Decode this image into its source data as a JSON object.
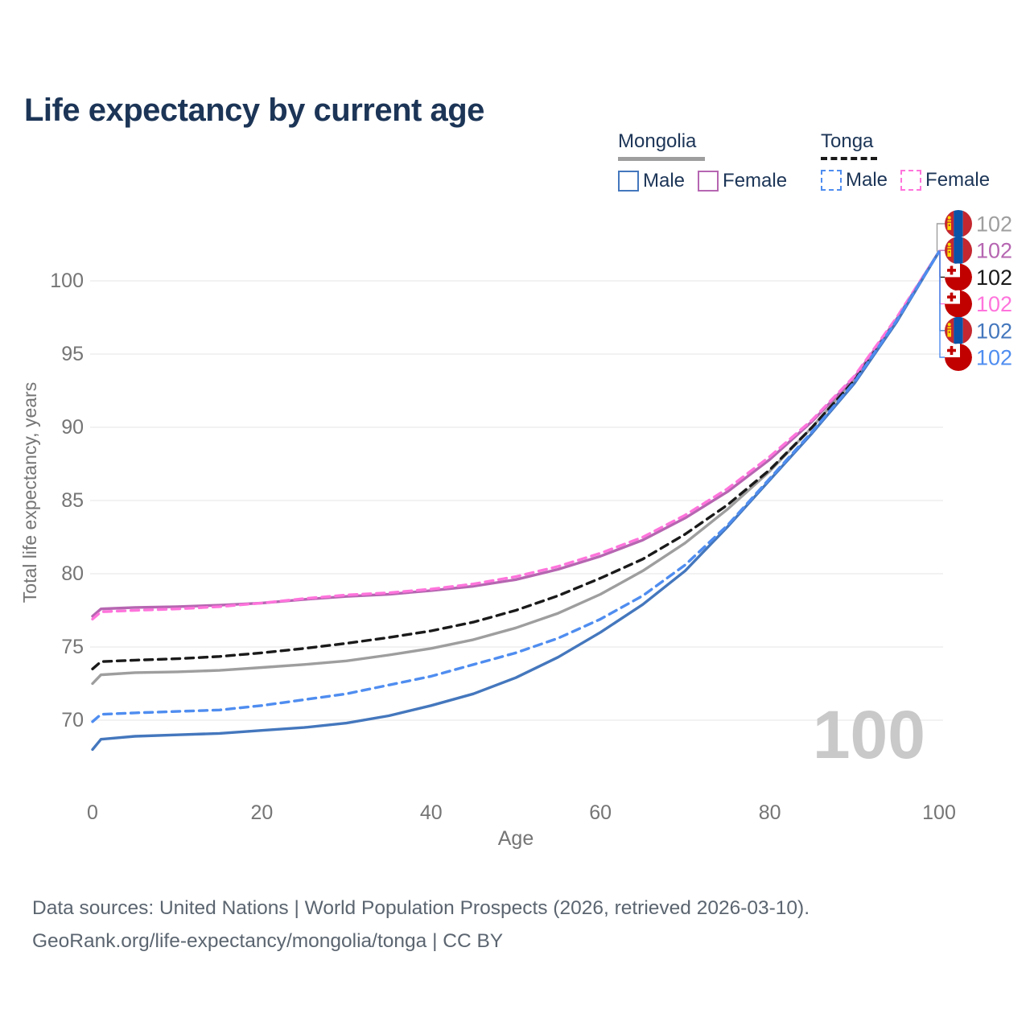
{
  "title": "Life expectancy by current age",
  "legend": {
    "groups": [
      {
        "country": "Mongolia",
        "underline_color": "#9e9e9e",
        "underline_style": "solid",
        "items": [
          {
            "label": "Male",
            "color": "#4477bd",
            "dash": false
          },
          {
            "label": "Female",
            "color": "#b666b1",
            "dash": false
          }
        ]
      },
      {
        "country": "Tonga",
        "underline_color": "#1a1a1a",
        "underline_style": "dashed",
        "items": [
          {
            "label": "Male",
            "color": "#4f8df0",
            "dash": true
          },
          {
            "label": "Female",
            "color": "#ff74dc",
            "dash": true
          }
        ]
      }
    ]
  },
  "chart_data": {
    "type": "line",
    "title": "Life expectancy by current age",
    "xlabel": "Age",
    "ylabel": "Total life expectancy, years",
    "xlim": [
      0,
      100
    ],
    "ylim": [
      67,
      103
    ],
    "x_ticks": [
      0,
      20,
      40,
      60,
      80,
      100
    ],
    "y_ticks": [
      70,
      75,
      80,
      85,
      90,
      95,
      100
    ],
    "grid": "horizontal",
    "legend_position": "top-right",
    "watermark": "100",
    "x": [
      0,
      1,
      5,
      10,
      15,
      20,
      25,
      30,
      35,
      40,
      45,
      50,
      55,
      60,
      65,
      70,
      75,
      80,
      85,
      90,
      95,
      100
    ],
    "series": [
      {
        "name": "Mongolia Total",
        "color": "#9e9e9e",
        "dash": false,
        "flag": "mongolia",
        "end_label": "102",
        "values": [
          72.5,
          73.1,
          73.25,
          73.3,
          73.4,
          73.6,
          73.8,
          74.05,
          74.45,
          74.9,
          75.5,
          76.3,
          77.3,
          78.6,
          80.2,
          82.1,
          84.4,
          87.0,
          90.0,
          93.3,
          97.3,
          102
        ]
      },
      {
        "name": "Mongolia Female",
        "color": "#b666b1",
        "dash": false,
        "flag": "mongolia",
        "end_label": "102",
        "values": [
          77.1,
          77.6,
          77.7,
          77.75,
          77.85,
          78.0,
          78.25,
          78.45,
          78.6,
          78.85,
          79.15,
          79.6,
          80.3,
          81.2,
          82.3,
          83.8,
          85.6,
          87.8,
          90.4,
          93.4,
          97.4,
          102
        ]
      },
      {
        "name": "Tonga Total",
        "color": "#1a1a1a",
        "dash": true,
        "flag": "tonga",
        "end_label": "102",
        "values": [
          73.5,
          74.0,
          74.1,
          74.2,
          74.35,
          74.6,
          74.9,
          75.25,
          75.65,
          76.1,
          76.7,
          77.5,
          78.5,
          79.7,
          81.0,
          82.7,
          84.7,
          87.1,
          90.0,
          93.2,
          97.3,
          102
        ]
      },
      {
        "name": "Tonga Female",
        "color": "#ff74dc",
        "dash": true,
        "flag": "tonga",
        "end_label": "102",
        "values": [
          76.9,
          77.4,
          77.5,
          77.6,
          77.75,
          78.0,
          78.3,
          78.55,
          78.7,
          78.95,
          79.3,
          79.8,
          80.5,
          81.4,
          82.5,
          84.0,
          85.8,
          88.0,
          90.5,
          93.5,
          97.5,
          102
        ]
      },
      {
        "name": "Mongolia Male",
        "color": "#4477bd",
        "dash": false,
        "flag": "mongolia",
        "end_label": "102",
        "values": [
          68.0,
          68.7,
          68.9,
          69.0,
          69.1,
          69.3,
          69.5,
          69.8,
          70.3,
          71.0,
          71.8,
          72.9,
          74.3,
          76.0,
          77.9,
          80.2,
          83.2,
          86.4,
          89.6,
          93.0,
          97.2,
          102
        ]
      },
      {
        "name": "Tonga Male",
        "color": "#4f8df0",
        "dash": true,
        "flag": "tonga",
        "end_label": "102",
        "values": [
          69.9,
          70.4,
          70.5,
          70.6,
          70.7,
          71.0,
          71.4,
          71.8,
          72.4,
          73.0,
          73.8,
          74.6,
          75.6,
          76.9,
          78.5,
          80.6,
          83.3,
          86.5,
          89.7,
          93.1,
          97.3,
          102
        ]
      }
    ],
    "flag_colors": {
      "mongolia_red": "#c4272f",
      "mongolia_blue": "#0b53a7",
      "mongolia_yellow": "#ffd900",
      "tonga_red": "#c10000",
      "tonga_white": "#ffffff"
    }
  },
  "style": {
    "axis_text_color": "#757575",
    "grid_color": "#eaeaea",
    "watermark_color": "#c9c9c9",
    "title_color": "#1c3557",
    "footer_color": "#5b6570"
  },
  "footer": {
    "line1": "Data sources: United Nations | World Population Prospects (2026, retrieved 2026-03-10).",
    "line2": "GeoRank.org/life-expectancy/mongolia/tonga | CC BY"
  }
}
